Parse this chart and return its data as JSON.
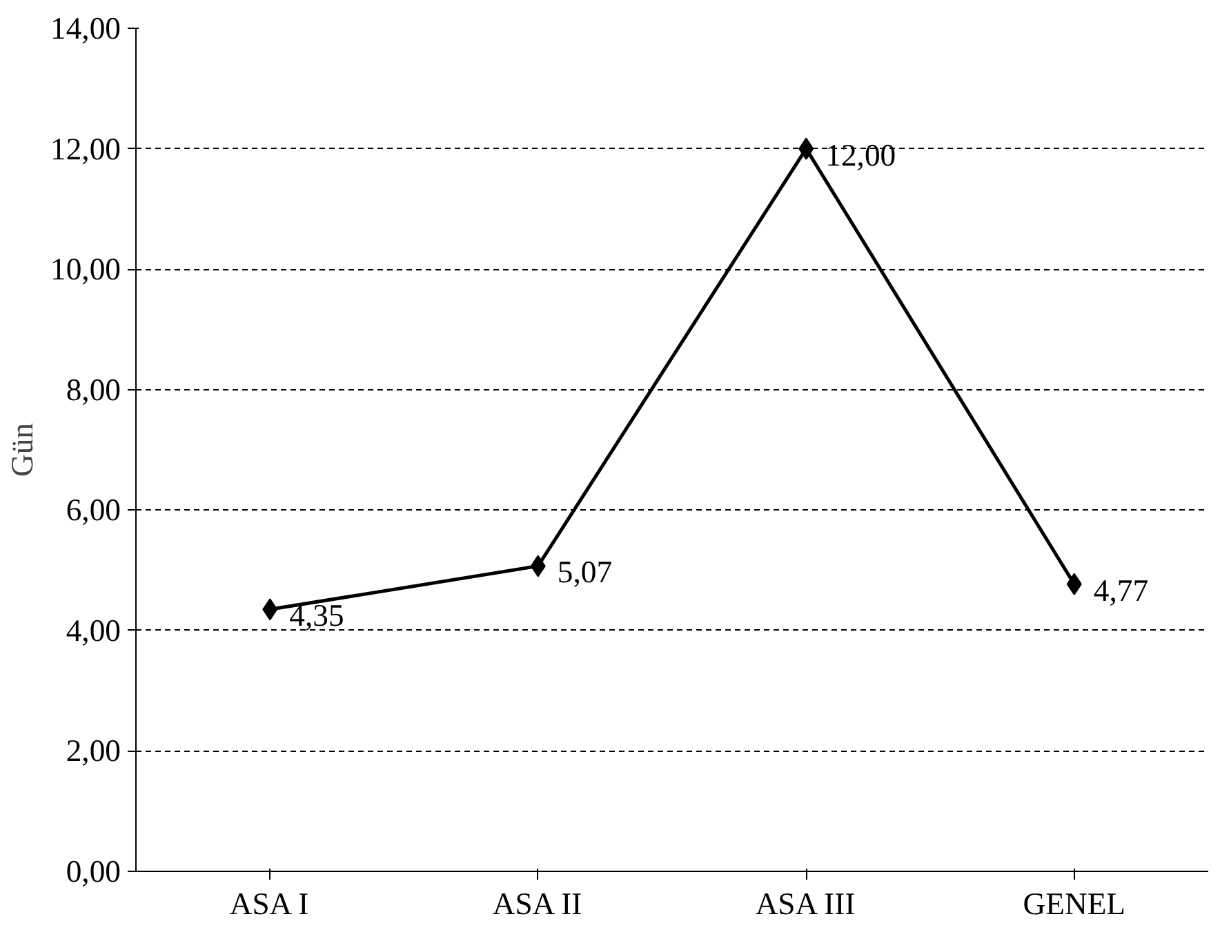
{
  "chart_data": {
    "type": "line",
    "ylabel": "Gün",
    "categories": [
      "ASA I",
      "ASA II",
      "ASA III",
      "GENEL"
    ],
    "series": [
      {
        "color": "#000000",
        "values": [
          4.35,
          5.07,
          12.0,
          4.77
        ],
        "value_labels": [
          "4,35",
          "5,07",
          "12,00",
          "4,77"
        ]
      }
    ],
    "ylim": [
      0,
      14
    ],
    "yticks": [
      {
        "value": 0,
        "label": "0,00"
      },
      {
        "value": 2,
        "label": "2,00"
      },
      {
        "value": 4,
        "label": "4,00"
      },
      {
        "value": 6,
        "label": "6,00"
      },
      {
        "value": 8,
        "label": "8,00"
      },
      {
        "value": 10,
        "label": "10,00"
      },
      {
        "value": 12,
        "label": "12,00"
      },
      {
        "value": 14,
        "label": "14,00"
      }
    ],
    "grid": "y",
    "marker": "diamond",
    "line_style": "solid"
  }
}
